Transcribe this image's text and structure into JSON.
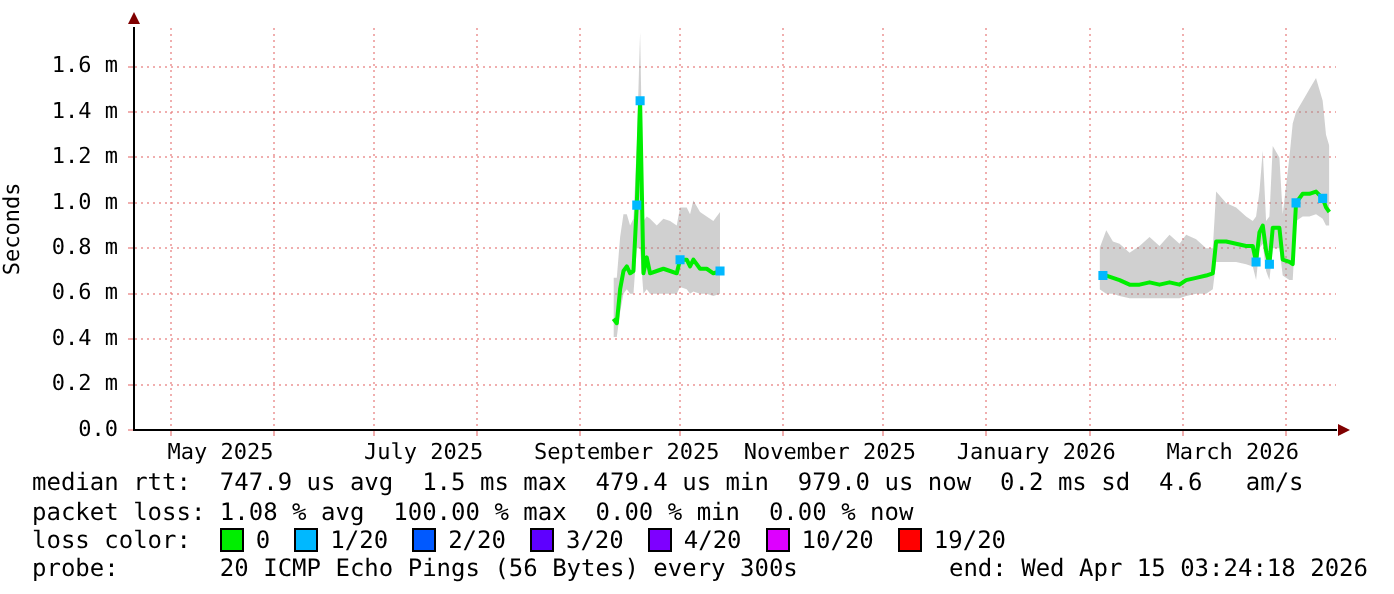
{
  "chart_data": {
    "type": "line",
    "ylabel": "Seconds",
    "legend_title": "loss color:",
    "legend": "bottom",
    "grid": true,
    "xlim": [
      "2025-04-20",
      "2026-04-16"
    ],
    "xticks": [
      {
        "value": "2025-05-01",
        "label": null
      },
      {
        "value": "2025-05-16",
        "label": "May 2025"
      },
      {
        "value": "2025-06-01",
        "label": null
      },
      {
        "value": "2025-07-01",
        "label": null
      },
      {
        "value": "2025-07-16",
        "label": "July 2025"
      },
      {
        "value": "2025-08-01",
        "label": null
      },
      {
        "value": "2025-09-01",
        "label": null
      },
      {
        "value": "2025-09-15",
        "label": "September 2025"
      },
      {
        "value": "2025-10-01",
        "label": null
      },
      {
        "value": "2025-11-01",
        "label": null
      },
      {
        "value": "2025-11-15",
        "label": "November 2025"
      },
      {
        "value": "2025-12-01",
        "label": null
      },
      {
        "value": "2026-01-01",
        "label": null
      },
      {
        "value": "2026-01-16",
        "label": "January 2026"
      },
      {
        "value": "2026-02-01",
        "label": null
      },
      {
        "value": "2026-03-01",
        "label": null
      },
      {
        "value": "2026-03-16",
        "label": "March 2026"
      },
      {
        "value": "2026-04-01",
        "label": null
      }
    ],
    "ylim": [
      0,
      1.77
    ],
    "yticks": [
      {
        "value": 0,
        "label": "0.0"
      },
      {
        "value": 0.2,
        "label": "0.2 m"
      },
      {
        "value": 0.4,
        "label": "0.4 m"
      },
      {
        "value": 0.6,
        "label": "0.6 m"
      },
      {
        "value": 0.8,
        "label": "0.8 m"
      },
      {
        "value": 1.0,
        "label": "1.0 m"
      },
      {
        "value": 1.2,
        "label": "1.2 m"
      },
      {
        "value": 1.4,
        "label": "1.4 m"
      },
      {
        "value": 1.6,
        "label": "1.6 m"
      }
    ],
    "series": [
      {
        "name": "0",
        "type": "line",
        "color": "#00ee00",
        "x": [
          "2025-09-11",
          "2025-09-12",
          "2025-09-13",
          "2025-09-14",
          "2025-09-15",
          "2025-09-16",
          "2025-09-17",
          "2025-09-18",
          "2025-09-19",
          "2025-09-20",
          "2025-09-21",
          "2025-09-22",
          "2025-09-24",
          "2025-09-26",
          "2025-09-28",
          "2025-09-30",
          "2025-10-01",
          "2025-10-03",
          "2025-10-04",
          "2025-10-05",
          "2025-10-07",
          "2025-10-09",
          "2025-10-11",
          "2025-10-13",
          "2025-10-14",
          "2026-02-04",
          "2026-02-06",
          "2026-02-08",
          "2026-02-10",
          "2026-02-13",
          "2026-02-16",
          "2026-02-19",
          "2026-02-22",
          "2026-02-25",
          "2026-02-28",
          "2026-03-02",
          "2026-03-05",
          "2026-03-08",
          "2026-03-10",
          "2026-03-11",
          "2026-03-14",
          "2026-03-17",
          "2026-03-20",
          "2026-03-22",
          "2026-03-23",
          "2026-03-24",
          "2026-03-25",
          "2026-03-26",
          "2026-03-27",
          "2026-03-28",
          "2026-03-30",
          "2026-03-31",
          "2026-04-02",
          "2026-04-03",
          "2026-04-04",
          "2026-04-06",
          "2026-04-08",
          "2026-04-10",
          "2026-04-12",
          "2026-04-13",
          "2026-04-14"
        ],
        "values": [
          0.49,
          0.47,
          0.62,
          0.7,
          0.72,
          0.69,
          0.7,
          0.99,
          1.45,
          0.69,
          0.76,
          0.69,
          0.7,
          0.71,
          0.7,
          0.69,
          0.75,
          0.75,
          0.72,
          0.75,
          0.71,
          0.71,
          0.69,
          0.7,
          null,
          0.69,
          0.68,
          0.67,
          0.66,
          0.64,
          0.64,
          0.65,
          0.64,
          0.65,
          0.64,
          0.66,
          0.67,
          0.68,
          0.69,
          0.83,
          0.83,
          0.82,
          0.81,
          0.81,
          0.74,
          0.87,
          0.9,
          0.79,
          0.73,
          0.89,
          0.89,
          0.75,
          0.74,
          0.73,
          1.0,
          1.04,
          1.04,
          1.05,
          1.02,
          0.98,
          0.96
        ],
        "lower": [
          0.41,
          0.41,
          0.52,
          0.6,
          0.62,
          0.6,
          0.6,
          0.8,
          0.8,
          0.6,
          0.62,
          0.6,
          0.6,
          0.6,
          0.6,
          0.6,
          0.63,
          0.62,
          0.6,
          0.61,
          0.6,
          0.6,
          0.59,
          0.6,
          null,
          0.62,
          0.6,
          0.6,
          0.59,
          0.58,
          0.58,
          0.58,
          0.58,
          0.58,
          0.58,
          0.59,
          0.6,
          0.6,
          0.62,
          0.74,
          0.74,
          0.74,
          0.73,
          0.72,
          0.66,
          0.8,
          0.82,
          0.7,
          0.66,
          0.8,
          0.8,
          0.68,
          0.66,
          0.66,
          0.92,
          0.94,
          0.94,
          0.95,
          0.93,
          0.9,
          0.9
        ],
        "upper": [
          0.67,
          0.67,
          0.85,
          0.95,
          0.95,
          0.9,
          0.93,
          1.25,
          1.75,
          0.92,
          0.94,
          0.93,
          0.9,
          0.93,
          0.92,
          0.9,
          0.98,
          0.98,
          0.95,
          1.01,
          0.96,
          0.94,
          0.92,
          0.96,
          null,
          0.8,
          0.88,
          0.83,
          0.82,
          0.78,
          0.81,
          0.85,
          0.81,
          0.86,
          0.82,
          0.86,
          0.84,
          0.8,
          0.8,
          1.05,
          1.0,
          0.98,
          0.94,
          0.92,
          0.94,
          1.05,
          1.23,
          0.92,
          0.94,
          1.25,
          1.2,
          0.95,
          1.2,
          1.35,
          1.4,
          1.45,
          1.5,
          1.55,
          1.45,
          1.3,
          1.25
        ]
      },
      {
        "name": "1/20",
        "type": "scatter",
        "color": "#00b8ff",
        "x": [
          "2025-09-18",
          "2025-09-19",
          "2025-10-01",
          "2025-10-13",
          "2026-02-05",
          "2026-03-23",
          "2026-03-27",
          "2026-04-04",
          "2026-04-12"
        ],
        "values": [
          0.99,
          1.45,
          0.75,
          0.7,
          0.68,
          0.74,
          0.73,
          1.0,
          1.02
        ]
      },
      {
        "name": "2/20",
        "type": "scatter",
        "color": "#0059ff"
      },
      {
        "name": "3/20",
        "type": "scatter",
        "color": "#5e00ff"
      },
      {
        "name": "4/20",
        "type": "scatter",
        "color": "#7e00ff"
      },
      {
        "name": "10/20",
        "type": "scatter",
        "color": "#dd00ff"
      },
      {
        "name": "19/20",
        "type": "scatter",
        "color": "#ff0000"
      }
    ],
    "annotations": [
      "median rtt:  747.9 us avg  1.5 ms max  479.4 us min  979.0 us now  0.2 ms sd  4.6   am/s",
      "packet loss: 1.08 % avg  100.00 % max  0.00 % min  0.00 % now",
      "probe:       20 ICMP Echo Pings (56 Bytes) every 300s",
      "end: Wed Apr 15 03:24:18 2026"
    ]
  }
}
